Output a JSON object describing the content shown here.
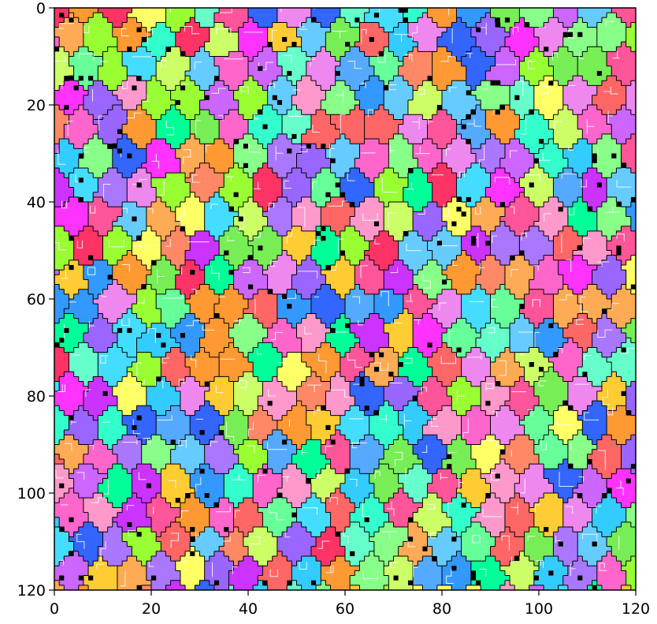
{
  "image": {
    "kind": "segmentation-mosaic",
    "description_of_content": "",
    "grid_cells": 120,
    "palette": [
      "#ff66cc",
      "#ffcc33",
      "#66ff99",
      "#33ccff",
      "#cc66ff",
      "#ff6666",
      "#99ff33",
      "#3366ff",
      "#ff9933",
      "#33ffcc",
      "#ff33ff",
      "#ccff66",
      "#66ccff",
      "#ff99cc",
      "#00ff99",
      "#ffff66",
      "#9966ff",
      "#ff3366",
      "#66ffcc",
      "#3399ff",
      "#cc33ff",
      "#ff8866",
      "#88ff88",
      "#44ddff",
      "#ffaa55",
      "#aa77ff",
      "#ee88ee",
      "#77ee55",
      "#55aaff",
      "#ff5599"
    ],
    "boundary_color": "#000000",
    "inner_line_color": "#ffffff"
  },
  "axes": {
    "x_ticks": [
      "0",
      "20",
      "40",
      "60",
      "80",
      "100",
      "120"
    ],
    "y_ticks": [
      "0",
      "20",
      "40",
      "60",
      "80",
      "100",
      "120"
    ]
  }
}
